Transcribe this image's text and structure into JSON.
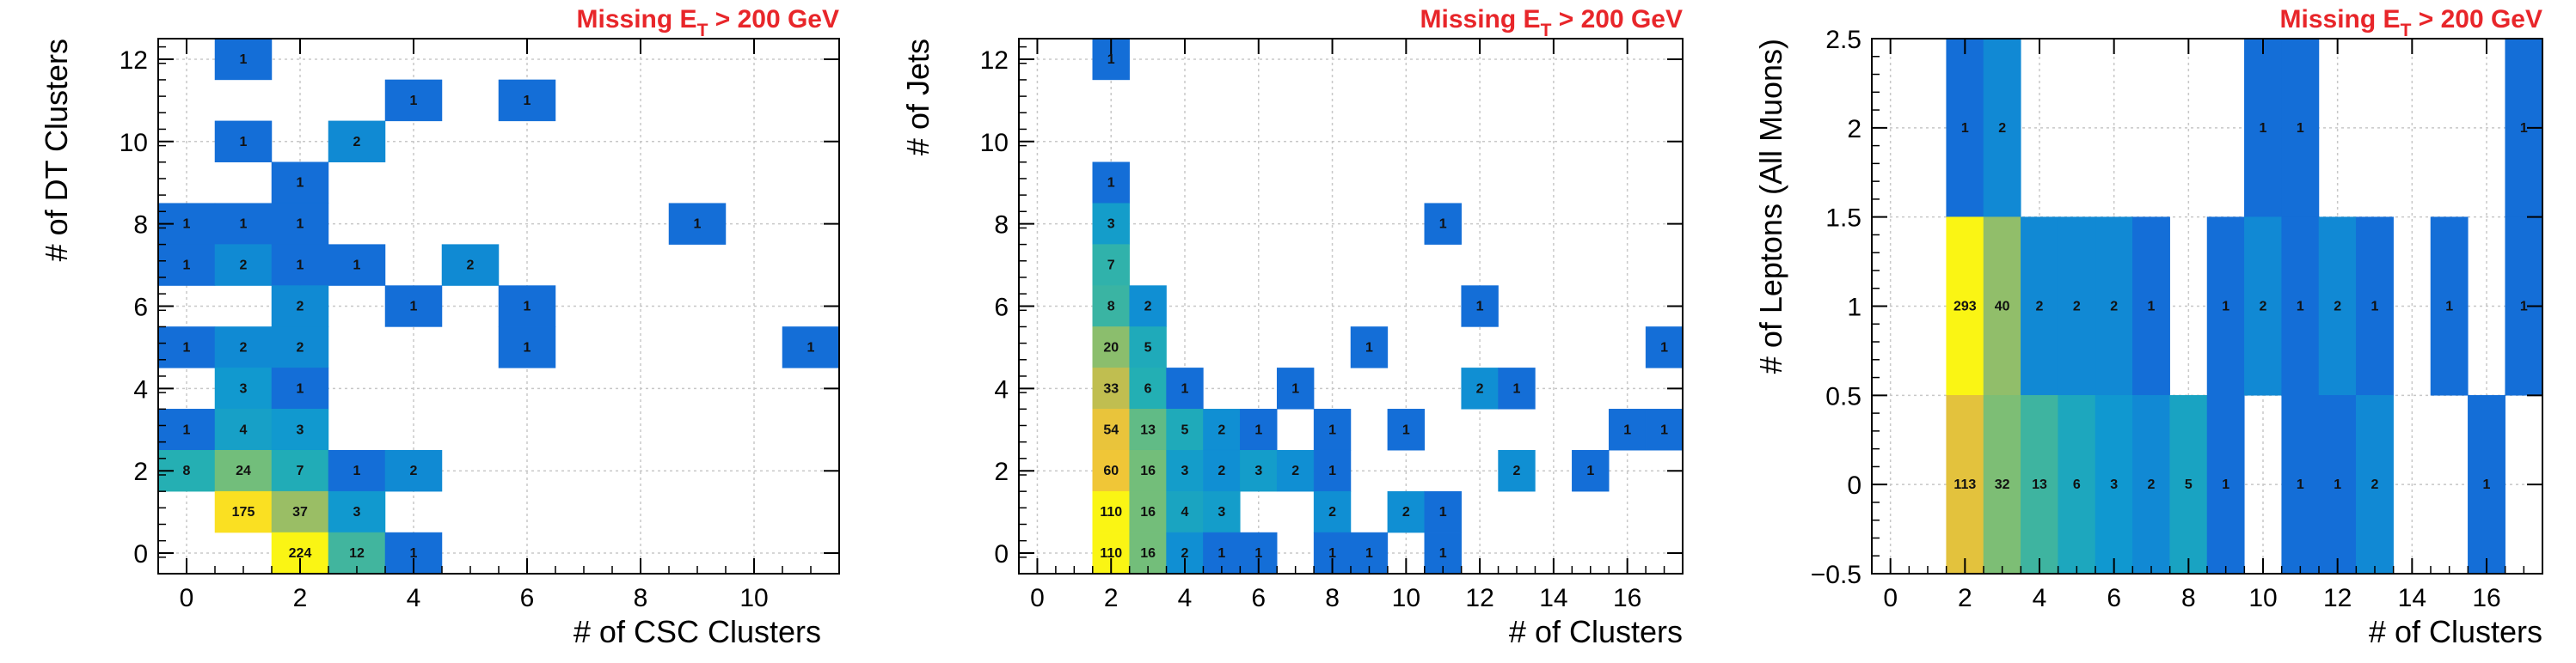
{
  "chart_data": [
    {
      "type": "heatmap",
      "title": "Missing E",
      "title_sub": "T",
      "title_suffix": " > 200 GeV",
      "xlabel": "# of CSC Clusters",
      "ylabel": "# of DT Clusters",
      "xlim": [
        -0.5,
        11.5
      ],
      "ylim": [
        -0.5,
        12.5
      ],
      "xticks": [
        0,
        2,
        4,
        6,
        8,
        10
      ],
      "yticks": [
        0,
        2,
        4,
        6,
        8,
        10,
        12
      ],
      "grid": true,
      "log_color_scale": true,
      "zmax": 224,
      "cells": [
        [
          1,
          12,
          1
        ],
        [
          4,
          11,
          1
        ],
        [
          6,
          11,
          1
        ],
        [
          1,
          10,
          1
        ],
        [
          3,
          10,
          2
        ],
        [
          2,
          9,
          1
        ],
        [
          0,
          8,
          1
        ],
        [
          1,
          8,
          1
        ],
        [
          2,
          8,
          1
        ],
        [
          9,
          8,
          1
        ],
        [
          0,
          7,
          1
        ],
        [
          1,
          7,
          2
        ],
        [
          2,
          7,
          1
        ],
        [
          3,
          7,
          1
        ],
        [
          5,
          7,
          2
        ],
        [
          2,
          6,
          2
        ],
        [
          4,
          6,
          1
        ],
        [
          6,
          6,
          1
        ],
        [
          0,
          5,
          1
        ],
        [
          1,
          5,
          2
        ],
        [
          2,
          5,
          2
        ],
        [
          6,
          5,
          1
        ],
        [
          11,
          5,
          1
        ],
        [
          1,
          4,
          3
        ],
        [
          2,
          4,
          1
        ],
        [
          0,
          3,
          1
        ],
        [
          1,
          3,
          4
        ],
        [
          2,
          3,
          3
        ],
        [
          0,
          2,
          8
        ],
        [
          1,
          2,
          24
        ],
        [
          2,
          2,
          7
        ],
        [
          3,
          2,
          1
        ],
        [
          4,
          2,
          2
        ],
        [
          1,
          1,
          175
        ],
        [
          2,
          1,
          37
        ],
        [
          3,
          1,
          3
        ],
        [
          2,
          0,
          224
        ],
        [
          3,
          0,
          12
        ],
        [
          4,
          0,
          1
        ]
      ]
    },
    {
      "type": "heatmap",
      "title": "Missing E",
      "title_sub": "T",
      "title_suffix": " > 200 GeV",
      "xlabel": "# of Clusters",
      "ylabel": "# of Jets",
      "xlim": [
        -0.5,
        17.5
      ],
      "ylim": [
        -0.5,
        12.5
      ],
      "xticks": [
        0,
        2,
        4,
        6,
        8,
        10,
        12,
        14,
        16
      ],
      "yticks": [
        0,
        2,
        4,
        6,
        8,
        10,
        12
      ],
      "grid": true,
      "log_color_scale": true,
      "zmax": 110,
      "cells": [
        [
          2,
          12,
          1
        ],
        [
          2,
          9,
          1
        ],
        [
          2,
          8,
          3
        ],
        [
          11,
          8,
          1
        ],
        [
          2,
          7,
          7
        ],
        [
          2,
          6,
          8
        ],
        [
          3,
          6,
          2
        ],
        [
          12,
          6,
          1
        ],
        [
          2,
          5,
          20
        ],
        [
          3,
          5,
          5
        ],
        [
          9,
          5,
          1
        ],
        [
          17,
          5,
          1
        ],
        [
          2,
          4,
          33
        ],
        [
          3,
          4,
          6
        ],
        [
          4,
          4,
          1
        ],
        [
          7,
          4,
          1
        ],
        [
          12,
          4,
          2
        ],
        [
          13,
          4,
          1
        ],
        [
          2,
          3,
          54
        ],
        [
          3,
          3,
          13
        ],
        [
          4,
          3,
          5
        ],
        [
          5,
          3,
          2
        ],
        [
          6,
          3,
          1
        ],
        [
          8,
          3,
          1
        ],
        [
          10,
          3,
          1
        ],
        [
          16,
          3,
          1
        ],
        [
          17,
          3,
          1
        ],
        [
          2,
          2,
          60
        ],
        [
          3,
          2,
          16
        ],
        [
          4,
          2,
          3
        ],
        [
          5,
          2,
          2
        ],
        [
          6,
          2,
          3
        ],
        [
          7,
          2,
          2
        ],
        [
          8,
          2,
          1
        ],
        [
          13,
          2,
          2
        ],
        [
          15,
          2,
          1
        ],
        [
          2,
          1,
          110
        ],
        [
          3,
          1,
          16
        ],
        [
          4,
          1,
          4
        ],
        [
          5,
          1,
          3
        ],
        [
          8,
          1,
          2
        ],
        [
          10,
          1,
          2
        ],
        [
          11,
          1,
          1
        ],
        [
          2,
          0,
          110
        ],
        [
          3,
          0,
          16
        ],
        [
          4,
          0,
          2
        ],
        [
          5,
          0,
          1
        ],
        [
          6,
          0,
          1
        ],
        [
          8,
          0,
          1
        ],
        [
          9,
          0,
          1
        ],
        [
          11,
          0,
          1
        ]
      ]
    },
    {
      "type": "heatmap",
      "title": "Missing E",
      "title_sub": "T",
      "title_suffix": " > 200 GeV",
      "xlabel": "# of Clusters",
      "ylabel": "# of Leptons (All Muons)",
      "xlim": [
        -0.5,
        17.5
      ],
      "ylim": [
        -0.5,
        2.5
      ],
      "xticks": [
        0,
        2,
        4,
        6,
        8,
        10,
        12,
        14,
        16
      ],
      "yticks": [
        -0.5,
        0,
        0.5,
        1,
        1.5,
        2,
        2.5
      ],
      "ytick_labels": [
        "−0.5",
        "0",
        "0.5",
        "1",
        "1.5",
        "2",
        "2.5"
      ],
      "grid": true,
      "log_color_scale": true,
      "zmax": 293,
      "cells": [
        [
          2,
          2,
          1
        ],
        [
          3,
          2,
          2
        ],
        [
          10,
          2,
          1
        ],
        [
          11,
          2,
          1
        ],
        [
          17,
          2,
          1
        ],
        [
          2,
          1,
          293
        ],
        [
          3,
          1,
          40
        ],
        [
          4,
          1,
          2
        ],
        [
          5,
          1,
          2
        ],
        [
          6,
          1,
          2
        ],
        [
          7,
          1,
          1
        ],
        [
          9,
          1,
          1
        ],
        [
          10,
          1,
          2
        ],
        [
          11,
          1,
          1
        ],
        [
          12,
          1,
          2
        ],
        [
          13,
          1,
          1
        ],
        [
          15,
          1,
          1
        ],
        [
          17,
          1,
          1
        ],
        [
          2,
          0,
          113
        ],
        [
          3,
          0,
          32
        ],
        [
          4,
          0,
          13
        ],
        [
          5,
          0,
          6
        ],
        [
          6,
          0,
          3
        ],
        [
          7,
          0,
          2
        ],
        [
          8,
          0,
          5
        ],
        [
          9,
          0,
          1
        ],
        [
          11,
          0,
          1
        ],
        [
          12,
          0,
          1
        ],
        [
          13,
          0,
          2
        ],
        [
          16,
          0,
          1
        ]
      ]
    }
  ]
}
